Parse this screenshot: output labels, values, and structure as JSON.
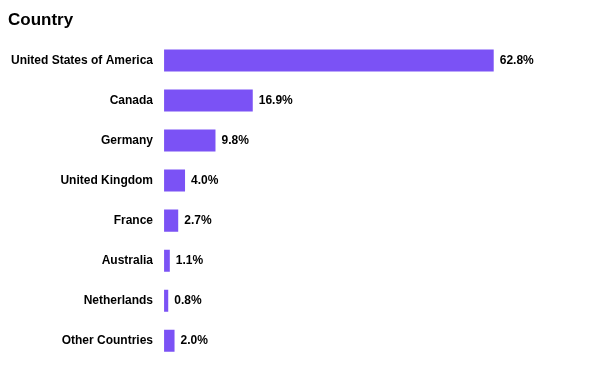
{
  "chart_data": {
    "type": "bar",
    "title": "Country",
    "orientation": "horizontal",
    "categories": [
      "United States of America",
      "Canada",
      "Germany",
      "United Kingdom",
      "France",
      "Australia",
      "Netherlands",
      "Other Countries"
    ],
    "values": [
      62.8,
      16.9,
      9.8,
      4.0,
      2.7,
      1.1,
      0.8,
      2.0
    ],
    "value_labels": [
      "62.8%",
      "16.9%",
      "9.8%",
      "4.0%",
      "2.7%",
      "1.1%",
      "0.8%",
      "2.0%"
    ],
    "data_labels": true,
    "color": "#7B52F5",
    "xlim": [
      0,
      80
    ],
    "tick_labels": "y",
    "grid": false
  }
}
